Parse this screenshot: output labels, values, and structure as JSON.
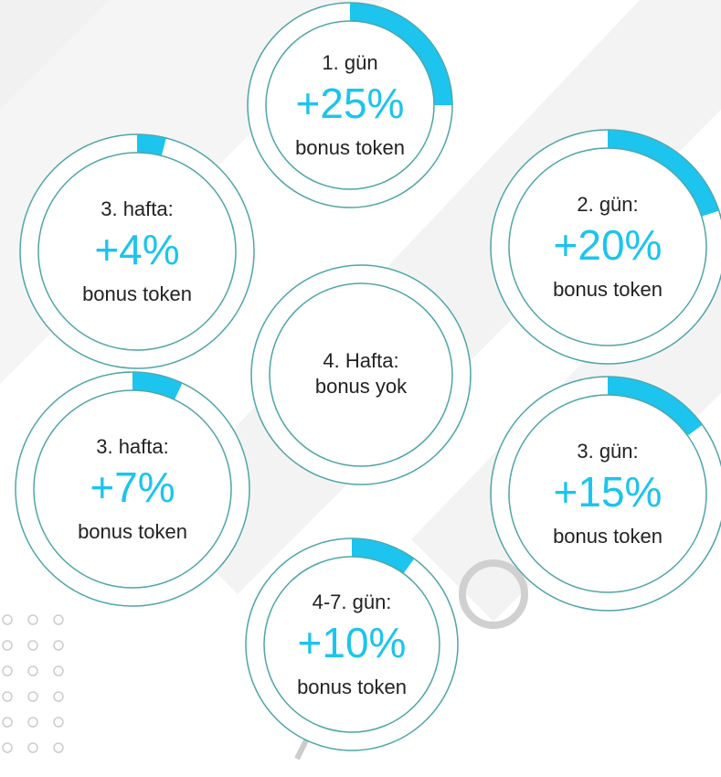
{
  "nodes": [
    {
      "title": "1. gün",
      "value": 25,
      "value_label": "+25%",
      "caption": "bonus token"
    },
    {
      "title": "3. hafta:",
      "value": 4,
      "value_label": "+4%",
      "caption": "bonus token"
    },
    {
      "title": "2. gün:",
      "value": 20,
      "value_label": "+20%",
      "caption": "bonus token"
    },
    {
      "title": "4. Hafta:",
      "caption": "bonus yok"
    },
    {
      "title": "3. hafta:",
      "value": 7,
      "value_label": "+7%",
      "caption": "bonus token"
    },
    {
      "title": "3. gün:",
      "value": 15,
      "value_label": "+15%",
      "caption": "bonus token"
    },
    {
      "title": "4-7. gün:",
      "value": 10,
      "value_label": "+10%",
      "caption": "bonus token"
    }
  ]
}
